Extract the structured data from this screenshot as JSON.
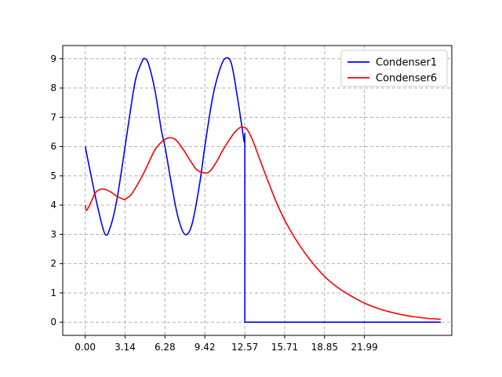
{
  "chart_data": {
    "type": "line",
    "title": "",
    "xlabel": "",
    "ylabel": "",
    "xlim": [
      -1.77,
      28.87
    ],
    "ylim": [
      -0.45,
      9.45
    ],
    "x_ticks": [
      0.0,
      3.14,
      6.28,
      9.42,
      12.57,
      15.71,
      18.85,
      21.99
    ],
    "x_tick_labels": [
      "0.00",
      "3.14",
      "6.28",
      "9.42",
      "12.57",
      "15.71",
      "18.85",
      "21.99"
    ],
    "y_ticks": [
      0,
      1,
      2,
      3,
      4,
      5,
      6,
      7,
      8,
      9
    ],
    "y_tick_labels": [
      "0",
      "1",
      "2",
      "3",
      "4",
      "5",
      "6",
      "7",
      "8",
      "9"
    ],
    "grid": true,
    "legend_position": "top-right",
    "series": [
      {
        "name": "Condenser1",
        "color": "#0000ff",
        "x": [
          0.0,
          0.5,
          1.0,
          1.57,
          2.0,
          2.5,
          3.14,
          3.6,
          4.0,
          4.5,
          4.71,
          5.0,
          5.5,
          6.0,
          6.28,
          6.8,
          7.3,
          7.85,
          8.4,
          9.0,
          9.42,
          10.0,
          10.5,
          10.99,
          11.5,
          12.0,
          12.5,
          12.57,
          12.57,
          13.0,
          15.0,
          20.0,
          25.0,
          28.0
        ],
        "y": [
          6.0,
          4.92,
          3.9,
          3.0,
          3.28,
          4.2,
          6.0,
          7.35,
          8.35,
          8.93,
          9.0,
          8.8,
          7.9,
          6.55,
          6.0,
          4.7,
          3.6,
          3.0,
          3.33,
          4.7,
          6.0,
          7.6,
          8.5,
          9.0,
          8.85,
          7.65,
          6.2,
          6.0,
          0.0,
          0.0,
          0.0,
          0.0,
          0.0,
          0.0
        ]
      },
      {
        "name": "Condenser6",
        "color": "#ff0000",
        "x": [
          0.0,
          0.1,
          0.4,
          0.8,
          1.2,
          1.6,
          2.0,
          2.5,
          3.0,
          3.14,
          3.6,
          4.0,
          4.5,
          5.0,
          5.5,
          6.0,
          6.28,
          6.6,
          7.0,
          7.3,
          7.8,
          8.3,
          8.8,
          9.42,
          9.8,
          10.3,
          10.8,
          11.3,
          11.8,
          12.2,
          12.57,
          12.8,
          13.2,
          13.8,
          14.5,
          15.2,
          16.0,
          17.0,
          18.0,
          19.0,
          20.0,
          21.0,
          22.0,
          23.0,
          24.0,
          25.0,
          26.0,
          27.0,
          28.0
        ],
        "y": [
          4.0,
          3.82,
          4.05,
          4.42,
          4.54,
          4.53,
          4.45,
          4.3,
          4.2,
          4.2,
          4.35,
          4.62,
          5.0,
          5.45,
          5.9,
          6.15,
          6.25,
          6.3,
          6.27,
          6.15,
          5.85,
          5.5,
          5.2,
          5.1,
          5.15,
          5.45,
          5.85,
          6.2,
          6.5,
          6.65,
          6.65,
          6.55,
          6.2,
          5.5,
          4.7,
          3.95,
          3.25,
          2.55,
          1.97,
          1.5,
          1.15,
          0.88,
          0.65,
          0.48,
          0.35,
          0.25,
          0.18,
          0.13,
          0.1
        ]
      }
    ]
  }
}
